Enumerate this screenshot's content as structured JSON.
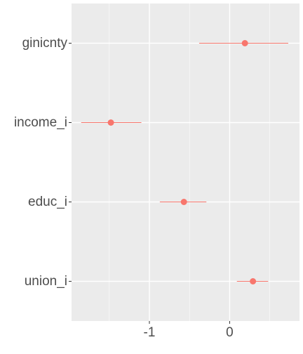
{
  "chart_data": {
    "type": "scatter",
    "style": "coefficient-plot",
    "title": "",
    "xlabel": "",
    "ylabel": "",
    "categories": [
      "ginicnty",
      "income_i",
      "educ_i",
      "union_i"
    ],
    "estimates": [
      0.19,
      -1.48,
      -0.57,
      0.29
    ],
    "lower": [
      -0.38,
      -1.85,
      -0.87,
      0.09
    ],
    "upper": [
      0.73,
      -1.1,
      -0.29,
      0.48
    ],
    "x_ticks": [
      -1,
      0
    ],
    "x_tick_labels": [
      "-1",
      "0"
    ],
    "xlim": [
      -1.97,
      0.87
    ],
    "grid": true,
    "colors": {
      "panel_background": "#ebebeb",
      "grid_major": "#ffffff",
      "point": "#f8766d",
      "tick": "#333333"
    }
  }
}
